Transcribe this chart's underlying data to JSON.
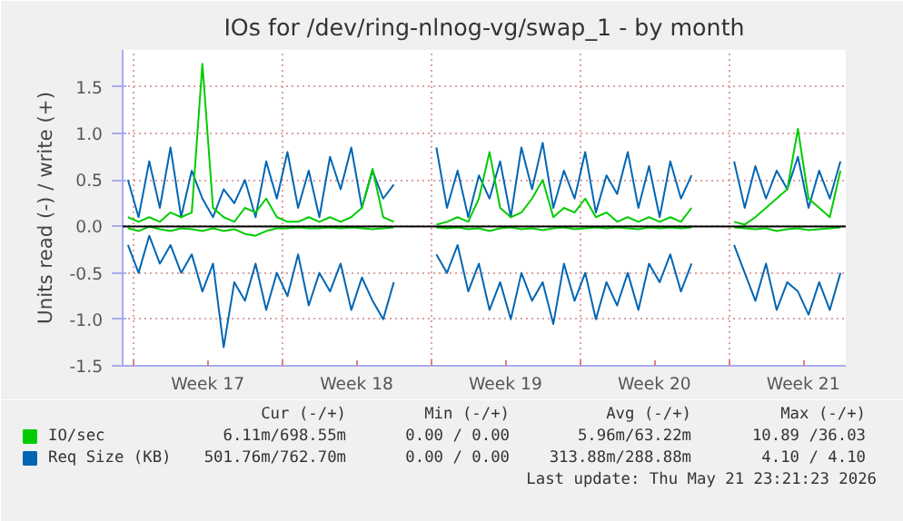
{
  "chart_data": {
    "type": "line",
    "title": "IOs for /dev/ring-nlnog-vg/swap_1 - by month",
    "ylabel": "Units read (-) / write (+)",
    "x": [
      "2026-04-19T18:00",
      "2026-04-20T06:00",
      "2026-04-20T18:00",
      "2026-04-21T06:00",
      "2026-04-21T18:00",
      "2026-04-22T06:00",
      "2026-04-22T18:00",
      "2026-04-23T06:00",
      "2026-04-23T18:00",
      "2026-04-24T06:00",
      "2026-04-24T18:00",
      "2026-04-25T06:00",
      "2026-04-25T18:00",
      "2026-04-26T06:00",
      "2026-04-26T18:00",
      "2026-04-27T06:00",
      "2026-04-27T18:00",
      "2026-04-28T06:00",
      "2026-04-28T18:00",
      "2026-04-29T06:00",
      "2026-04-29T18:00",
      "2026-04-30T06:00",
      "2026-04-30T18:00",
      "2026-05-01T06:00",
      "2026-05-01T18:00",
      "2026-05-02T06:00",
      "2026-05-02T18:00",
      "2026-05-03T06:00",
      "2026-05-03T18:00",
      "2026-05-04T06:00",
      "2026-05-04T18:00",
      "2026-05-05T06:00",
      "2026-05-05T18:00",
      "2026-05-06T06:00",
      "2026-05-06T18:00",
      "2026-05-07T06:00",
      "2026-05-07T18:00",
      "2026-05-08T06:00",
      "2026-05-08T18:00",
      "2026-05-09T06:00",
      "2026-05-09T18:00",
      "2026-05-10T06:00",
      "2026-05-10T18:00",
      "2026-05-11T06:00",
      "2026-05-11T18:00",
      "2026-05-12T06:00",
      "2026-05-12T18:00",
      "2026-05-13T06:00",
      "2026-05-13T18:00",
      "2026-05-14T06:00",
      "2026-05-14T18:00",
      "2026-05-15T06:00",
      "2026-05-15T18:00",
      "2026-05-16T06:00",
      "2026-05-16T18:00",
      "2026-05-17T06:00",
      "2026-05-17T18:00",
      "2026-05-18T06:00",
      "2026-05-18T18:00",
      "2026-05-19T06:00",
      "2026-05-19T18:00",
      "2026-05-20T06:00",
      "2026-05-20T18:00",
      "2026-05-21T06:00",
      "2026-05-21T18:00",
      "2026-05-22T06:00",
      "2026-05-22T18:00",
      "2026-05-23T06:00"
    ],
    "series": [
      {
        "color": "#0066b3",
        "values": [
          -0.2,
          -0.5,
          -0.1,
          -0.4,
          -0.2,
          -0.5,
          -0.3,
          -0.7,
          -0.4,
          -1.3,
          -0.6,
          -0.8,
          -0.4,
          -0.9,
          -0.5,
          -0.75,
          -0.3,
          -0.85,
          -0.5,
          -0.7,
          -0.4,
          -0.9,
          -0.55,
          -0.8,
          -1.0,
          -0.6,
          null,
          null,
          null,
          -0.3,
          -0.5,
          -0.2,
          -0.7,
          -0.4,
          -0.9,
          -0.6,
          -1.0,
          -0.5,
          -0.8,
          -0.6,
          -1.05,
          -0.4,
          -0.8,
          -0.5,
          -1.0,
          -0.6,
          -0.85,
          -0.5,
          -0.9,
          -0.4,
          -0.6,
          -0.3,
          -0.7,
          -0.4,
          null,
          null,
          null,
          -0.2,
          -0.5,
          -0.8,
          -0.4,
          -0.9,
          -0.6,
          -0.7,
          -0.95,
          -0.6,
          -0.9,
          -0.5
        ]
      },
      {
        "name": "Req Size (KB)",
        "color": "#0066b3",
        "values": [
          0.5,
          0.1,
          0.7,
          0.2,
          0.85,
          0.1,
          0.6,
          0.3,
          0.1,
          0.4,
          0.25,
          0.5,
          0.1,
          0.7,
          0.3,
          0.8,
          0.2,
          0.6,
          0.1,
          0.75,
          0.4,
          0.85,
          0.2,
          0.6,
          0.3,
          0.45,
          null,
          null,
          null,
          0.85,
          0.2,
          0.6,
          0.1,
          0.55,
          0.3,
          0.7,
          0.1,
          0.85,
          0.4,
          0.9,
          0.2,
          0.6,
          0.3,
          0.8,
          0.15,
          0.55,
          0.35,
          0.8,
          0.2,
          0.65,
          0.1,
          0.7,
          0.3,
          0.55,
          null,
          null,
          null,
          0.7,
          0.2,
          0.65,
          0.3,
          0.6,
          0.4,
          0.75,
          0.2,
          0.6,
          0.3,
          0.7
        ]
      },
      {
        "color": "#00cc00",
        "values": [
          -0.02,
          -0.05,
          0,
          -0.03,
          -0.05,
          -0.02,
          -0.03,
          -0.05,
          -0.02,
          -0.05,
          -0.03,
          -0.08,
          -0.1,
          -0.05,
          -0.02,
          -0.02,
          -0.01,
          -0.02,
          -0.02,
          -0.01,
          -0.02,
          -0.01,
          -0.02,
          -0.03,
          -0.02,
          -0.01,
          null,
          null,
          null,
          -0.01,
          -0.02,
          -0.01,
          -0.03,
          -0.02,
          -0.05,
          -0.02,
          -0.01,
          -0.03,
          -0.02,
          -0.04,
          -0.02,
          -0.01,
          -0.03,
          -0.02,
          -0.01,
          -0.02,
          -0.01,
          -0.02,
          -0.03,
          -0.01,
          -0.02,
          -0.01,
          -0.02,
          -0.01,
          null,
          null,
          null,
          -0.01,
          -0.02,
          -0.03,
          -0.02,
          -0.05,
          -0.03,
          -0.02,
          -0.04,
          -0.03,
          -0.02,
          -0.01
        ]
      },
      {
        "name": "IO/sec",
        "color": "#00cc00",
        "values": [
          0.1,
          0.05,
          0.1,
          0.05,
          0.15,
          0.1,
          0.15,
          1.75,
          0.2,
          0.1,
          0.05,
          0.2,
          0.15,
          0.3,
          0.1,
          0.05,
          0.05,
          0.1,
          0.05,
          0.1,
          0.05,
          0.1,
          0.2,
          0.62,
          0.1,
          0.05,
          null,
          null,
          null,
          0.02,
          0.05,
          0.1,
          0.05,
          0.3,
          0.8,
          0.2,
          0.1,
          0.15,
          0.3,
          0.5,
          0.1,
          0.2,
          0.15,
          0.3,
          0.1,
          0.15,
          0.05,
          0.1,
          0.05,
          0.1,
          0.05,
          0.1,
          0.05,
          0.2,
          null,
          null,
          null,
          0.05,
          0.02,
          0.1,
          0.2,
          0.3,
          0.4,
          1.05,
          0.3,
          0.2,
          0.1,
          0.6
        ]
      }
    ],
    "xlim": [
      "2026-04-19T12:00",
      "2026-05-23T12:00"
    ],
    "xticks": [
      {
        "value": "2026-04-20",
        "label": null
      },
      {
        "value": "2026-04-23T12:00",
        "label": "Week 17"
      },
      {
        "value": "2026-04-27",
        "label": null
      },
      {
        "value": "2026-04-30T12:00",
        "label": "Week 18"
      },
      {
        "value": "2026-05-04",
        "label": null
      },
      {
        "value": "2026-05-07T12:00",
        "label": "Week 19"
      },
      {
        "value": "2026-05-11",
        "label": null
      },
      {
        "value": "2026-05-14T12:00",
        "label": "Week 20"
      },
      {
        "value": "2026-05-18",
        "label": null
      },
      {
        "value": "2026-05-21T12:00",
        "label": "Week 21"
      }
    ],
    "ylim": [
      -1.5,
      1.9
    ],
    "yticks": [
      {
        "value": -1.5,
        "label": "-1.5"
      },
      {
        "value": -1.0,
        "label": "-1.0"
      },
      {
        "value": -0.5,
        "label": "-0.5"
      },
      {
        "value": 0,
        "label": "0.0"
      },
      {
        "value": 0.5,
        "label": "0.5"
      },
      {
        "value": 1.0,
        "label": "1.0"
      },
      {
        "value": 1.5,
        "label": "1.5"
      }
    ],
    "ref_lines": [
      {
        "axis": "y",
        "value": 0,
        "color": "#000000"
      }
    ],
    "grid": true,
    "legend": "bottom left",
    "marker": "none",
    "line_style": "solid",
    "annotations": [
      "Cur (-/+)",
      "Min (-/+)",
      "Avg (-/+)",
      "Max (-/+)",
      "6.11m/698.55m",
      "0.00 / 0.00",
      "5.96m/63.22m",
      "10.89 /36.03",
      "501.76m/762.70m",
      "0.00 / 0.00",
      "313.88m/288.88m",
      "4.10 / 4.10",
      "Last update: Thu May 21 23:21:23 2026"
    ]
  }
}
